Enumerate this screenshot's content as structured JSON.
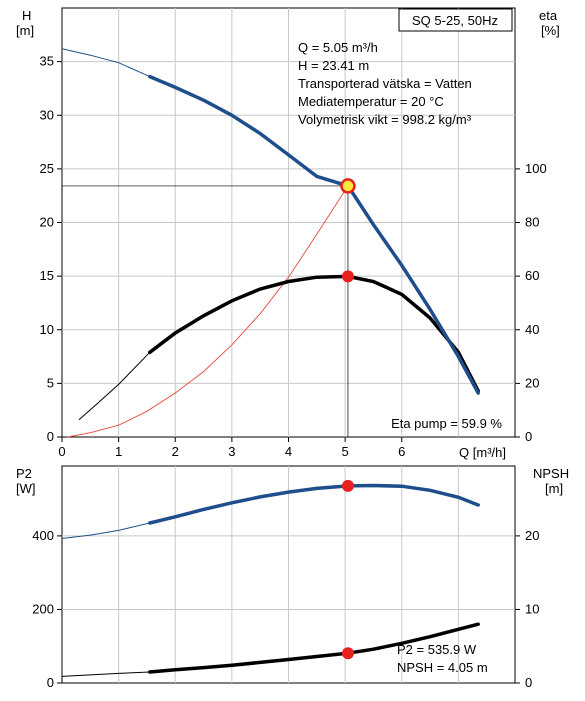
{
  "chart_data": [
    {
      "type": "line",
      "title": "SQ 5-25, 50Hz",
      "xlabel": "Q [m³/h]",
      "ylabel_left": [
        "H",
        "[m]"
      ],
      "ylabel_right": [
        "eta",
        "[%]"
      ],
      "xlim": [
        0,
        8
      ],
      "ylim_left": [
        0,
        40
      ],
      "ylim_right": [
        0,
        160
      ],
      "x_ticks": [
        "0",
        "1",
        "2",
        "3",
        "4",
        "5",
        "6"
      ],
      "y_ticks_left": [
        "0",
        "5",
        "10",
        "15",
        "20",
        "25",
        "30",
        "35"
      ],
      "y_ticks_right": [
        "0",
        "20",
        "40",
        "60",
        "80",
        "100"
      ],
      "grid": true,
      "info_lines": [
        "Q = 5.05 m³/h",
        "H = 23.41 m",
        "Transporterad vätska = Vatten",
        "Mediatemperatur = 20 °C",
        "Volymetrisk vikt = 998.2 kg/m³"
      ],
      "eta_label": "Eta pump = 59.9 %",
      "duty_point": {
        "x": 5.05,
        "H": 23.41,
        "eta": 59.9
      },
      "series": [
        {
          "name": "H",
          "axis": "left",
          "color": "#1f4e8c",
          "points_thin": [
            [
              0,
              36.2
            ],
            [
              0.5,
              35.6
            ],
            [
              1.0,
              34.9
            ],
            [
              1.55,
              33.6
            ]
          ],
          "points_thick": [
            [
              1.55,
              33.6
            ],
            [
              2.0,
              32.6
            ],
            [
              2.5,
              31.4
            ],
            [
              3.0,
              30.0
            ],
            [
              3.5,
              28.3
            ],
            [
              4.0,
              26.3
            ],
            [
              4.5,
              24.3
            ],
            [
              5.05,
              23.41
            ],
            [
              5.5,
              19.8
            ],
            [
              6.0,
              16.0
            ],
            [
              6.5,
              11.9
            ],
            [
              7.0,
              7.5
            ],
            [
              7.35,
              4.1
            ]
          ]
        },
        {
          "name": "eta",
          "axis": "right",
          "color": "#000000",
          "points_thin": [
            [
              0.3,
              6.4
            ],
            [
              0.6,
              12.0
            ],
            [
              1.0,
              19.6
            ],
            [
              1.55,
              31.6
            ]
          ],
          "points_thick": [
            [
              1.55,
              31.6
            ],
            [
              2.0,
              38.8
            ],
            [
              2.5,
              45.2
            ],
            [
              3.0,
              50.8
            ],
            [
              3.5,
              55.2
            ],
            [
              4.0,
              58.0
            ],
            [
              4.5,
              59.6
            ],
            [
              5.05,
              59.9
            ],
            [
              5.5,
              58.0
            ],
            [
              6.0,
              53.2
            ],
            [
              6.5,
              44.4
            ],
            [
              7.0,
              31.6
            ],
            [
              7.35,
              17.2
            ]
          ]
        },
        {
          "name": "system curve",
          "axis": "left",
          "color": "#e84a3a",
          "points": [
            [
              0.1,
              0.0
            ],
            [
              0.5,
              0.4
            ],
            [
              1.0,
              1.1
            ],
            [
              1.5,
              2.4
            ],
            [
              2.0,
              4.1
            ],
            [
              2.5,
              6.1
            ],
            [
              3.0,
              8.6
            ],
            [
              3.5,
              11.5
            ],
            [
              4.0,
              14.9
            ],
            [
              4.5,
              18.9
            ],
            [
              5.05,
              23.41
            ]
          ]
        }
      ]
    },
    {
      "type": "line",
      "xlabel": "",
      "ylabel_left": [
        "P2",
        "[W]"
      ],
      "ylabel_right": [
        "NPSH",
        "[m]"
      ],
      "xlim": [
        0,
        8
      ],
      "ylim_left": [
        0,
        590
      ],
      "ylim_right": [
        0,
        29.5
      ],
      "y_ticks_left": [
        "0",
        "200",
        "400"
      ],
      "y_ticks_right": [
        "0",
        "10",
        "20"
      ],
      "grid": true,
      "info_lines": [
        "P2 = 535.9 W",
        "NPSH = 4.05 m"
      ],
      "duty_point": {
        "x": 5.05,
        "P2": 535.9,
        "NPSH": 4.05
      },
      "series": [
        {
          "name": "P2",
          "axis": "left",
          "color": "#1f4e8c",
          "points_thin": [
            [
              0,
              393
            ],
            [
              0.5,
              402
            ],
            [
              1.0,
              415
            ],
            [
              1.55,
              435
            ]
          ],
          "points_thick": [
            [
              1.55,
              435
            ],
            [
              2.0,
              452
            ],
            [
              2.5,
              472
            ],
            [
              3.0,
              490
            ],
            [
              3.5,
              506
            ],
            [
              4.0,
              519
            ],
            [
              4.5,
              529
            ],
            [
              5.05,
              535.9
            ],
            [
              5.5,
              537
            ],
            [
              6.0,
              535
            ],
            [
              6.5,
              524
            ],
            [
              7.0,
              505
            ],
            [
              7.35,
              484
            ]
          ]
        },
        {
          "name": "NPSH",
          "axis": "right",
          "color": "#000000",
          "points_thin": [
            [
              0,
              0.9
            ],
            [
              0.5,
              1.1
            ],
            [
              1.0,
              1.3
            ],
            [
              1.55,
              1.5
            ]
          ],
          "points_thick": [
            [
              1.55,
              1.5
            ],
            [
              2.0,
              1.8
            ],
            [
              2.5,
              2.1
            ],
            [
              3.0,
              2.4
            ],
            [
              3.5,
              2.8
            ],
            [
              4.0,
              3.2
            ],
            [
              4.5,
              3.6
            ],
            [
              5.05,
              4.05
            ],
            [
              5.5,
              4.6
            ],
            [
              6.0,
              5.4
            ],
            [
              6.5,
              6.3
            ],
            [
              7.0,
              7.3
            ],
            [
              7.35,
              8.0
            ]
          ]
        }
      ]
    }
  ]
}
